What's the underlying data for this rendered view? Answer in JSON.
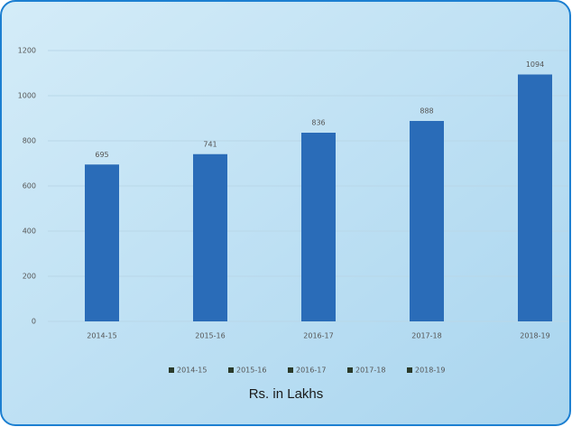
{
  "chart_data": {
    "type": "bar",
    "title": "Rs. in Lakhs",
    "categories": [
      "2014-15",
      "2015-16",
      "2016-17",
      "2017-18",
      "2018-19"
    ],
    "values": [
      695,
      741,
      836,
      888,
      1094
    ],
    "color": "#2a6cb8",
    "ylim": [
      0,
      1200
    ],
    "yticks": [
      0,
      200,
      400,
      600,
      800,
      1000,
      1200
    ],
    "grid": true,
    "legend": "bottom"
  }
}
